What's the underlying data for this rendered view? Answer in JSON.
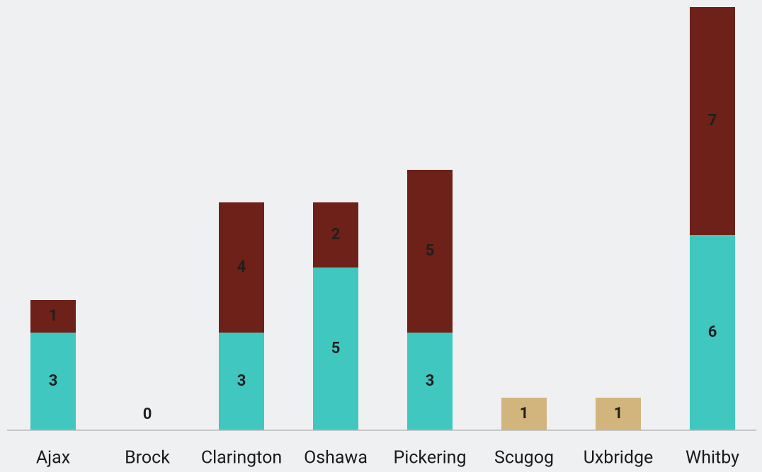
{
  "chart_data": {
    "type": "stacked-bar",
    "categories": [
      "Ajax",
      "Brock",
      "Clarington",
      "Oshawa",
      "Pickering",
      "Scugog",
      "Uxbridge",
      "Whitby"
    ],
    "series": [
      {
        "color": "#40c7bf",
        "values": [
          3,
          0,
          3,
          5,
          3,
          null,
          null,
          6
        ]
      },
      {
        "color": "#6e2118",
        "values": [
          1,
          null,
          4,
          2,
          5,
          null,
          null,
          7
        ]
      },
      {
        "color": "#d1b57c",
        "values": [
          null,
          null,
          null,
          null,
          null,
          1,
          1,
          null
        ]
      }
    ],
    "ylim": [
      0,
      13
    ]
  }
}
